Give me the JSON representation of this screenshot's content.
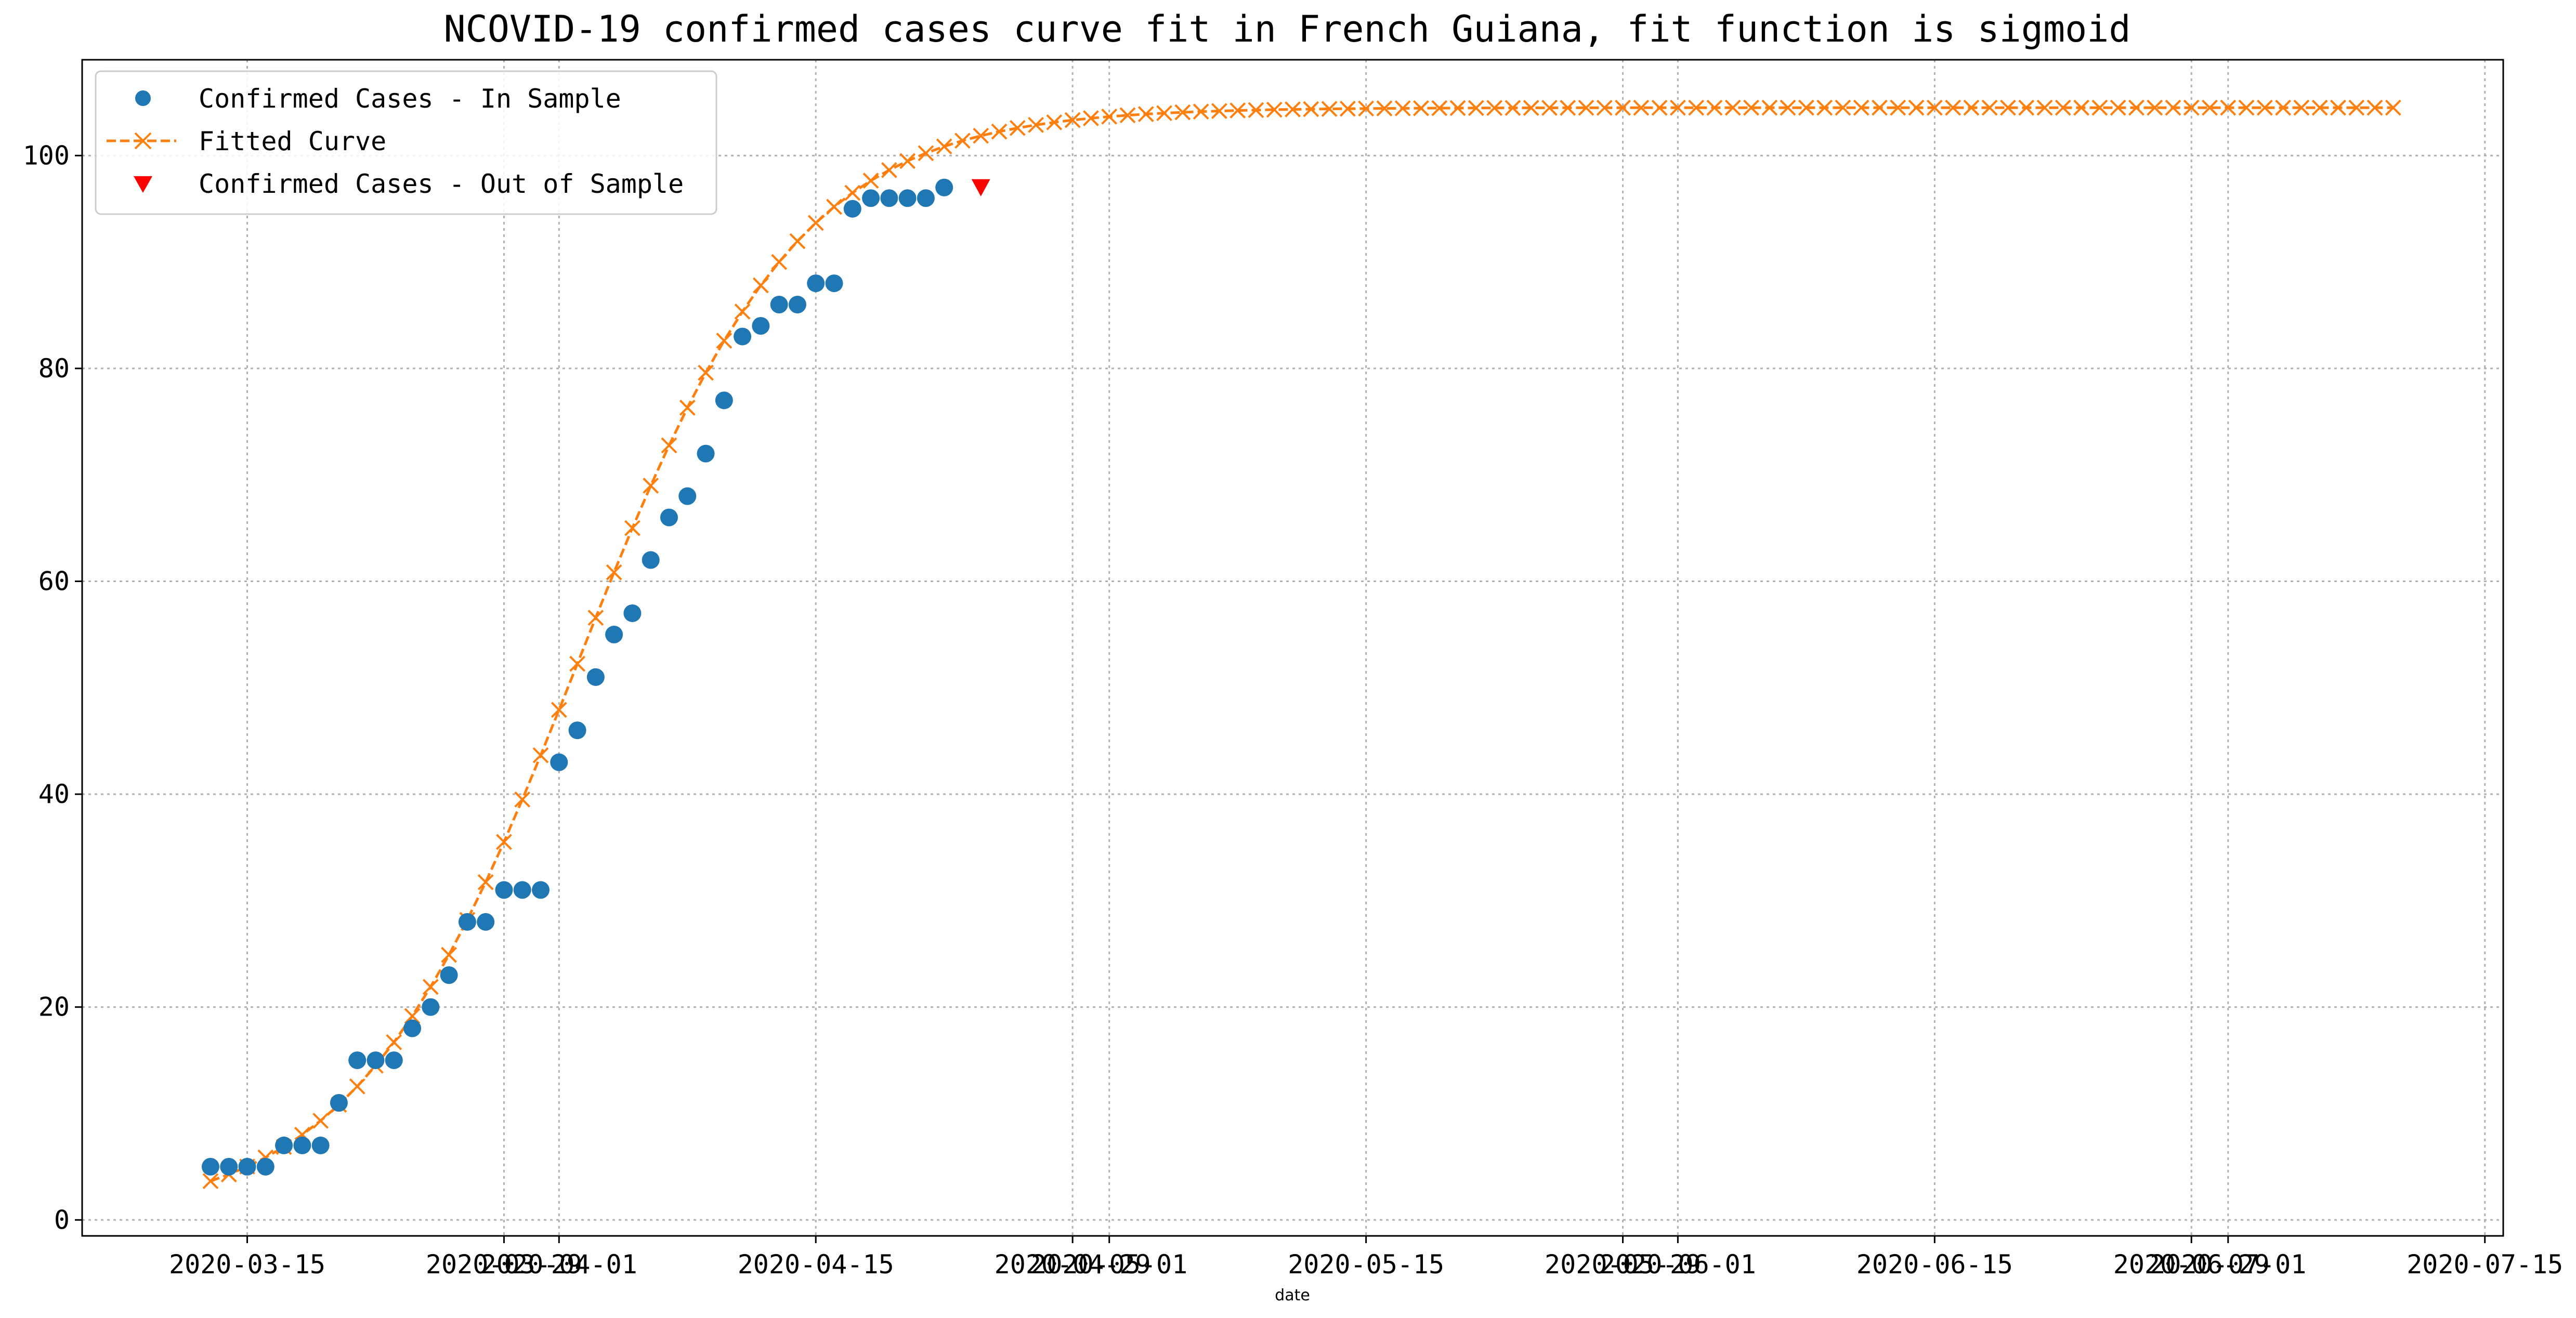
{
  "chart_data": {
    "type": "line",
    "title": "NCOVID-19 confirmed cases curve fit in French Guiana, fit function is sigmoid",
    "xlabel": "date",
    "ylabel": "",
    "ylim": [
      -1.5,
      109
    ],
    "xlim": [
      "2020-03-06",
      "2020-07-16"
    ],
    "grid": true,
    "legend_position": "top-left",
    "yticks": [
      0,
      20,
      40,
      60,
      80,
      100
    ],
    "xticks": [
      {
        "date": "2020-03-15",
        "label": "2020-03-15"
      },
      {
        "date": "2020-03-29",
        "label": "2020-03-29"
      },
      {
        "date": "2020-04-01",
        "label": "2020-04-01"
      },
      {
        "date": "2020-04-15",
        "label": "2020-04-15"
      },
      {
        "date": "2020-04-29",
        "label": "2020-04-29"
      },
      {
        "date": "2020-05-01",
        "label": "2020-05-01"
      },
      {
        "date": "2020-05-15",
        "label": "2020-05-15"
      },
      {
        "date": "2020-05-29",
        "label": "2020-05-29"
      },
      {
        "date": "2020-06-01",
        "label": "2020-06-01"
      },
      {
        "date": "2020-06-15",
        "label": "2020-06-15"
      },
      {
        "date": "2020-06-29",
        "label": "2020-06-29"
      },
      {
        "date": "2020-07-01",
        "label": "2020-07-01"
      },
      {
        "date": "2020-07-15",
        "label": "2020-07-15"
      }
    ],
    "series": [
      {
        "name": "Confirmed Cases - In Sample",
        "kind": "scatter",
        "marker": "circle",
        "color": "#1f77b4",
        "start_date": "2020-03-13",
        "values": [
          5,
          5,
          5,
          5,
          7,
          7,
          7,
          11,
          15,
          15,
          15,
          18,
          20,
          23,
          28,
          28,
          31,
          31,
          31,
          43,
          46,
          51,
          55,
          57,
          62,
          66,
          68,
          72,
          77,
          83,
          84,
          86,
          86,
          88,
          88,
          95,
          96,
          96,
          96,
          96,
          97
        ]
      },
      {
        "name": "Fitted Curve",
        "kind": "line",
        "marker": "x",
        "linestyle": "dashed",
        "color": "#ff7f0e",
        "start_date": "2020-03-13",
        "asymptote": 104.5,
        "midpoint_date": "2020-04-02",
        "growth_rate": 0.166,
        "end_date": "2020-07-10"
      },
      {
        "name": "Confirmed Cases - Out of Sample",
        "kind": "scatter",
        "marker": "triangle-down",
        "color": "#ff0000",
        "points": [
          {
            "date": "2020-04-24",
            "y": 97
          }
        ]
      }
    ]
  }
}
